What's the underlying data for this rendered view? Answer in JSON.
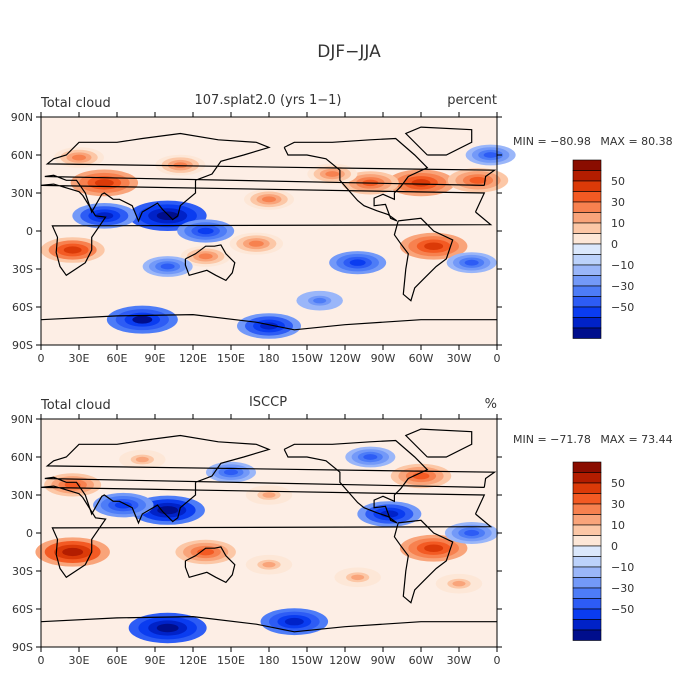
{
  "title": "DJF−JJA",
  "colorbar": {
    "colors": [
      "#000e8c",
      "#0022c8",
      "#0a3cf0",
      "#2d5cf5",
      "#4d7cf7",
      "#7399f8",
      "#9ab6f9",
      "#bcd2fb",
      "#dbe8fc",
      "#fde7d7",
      "#fcc7a6",
      "#f9a47a",
      "#f7814f",
      "#f35a23",
      "#db3a08",
      "#b31d00",
      "#8a0d00"
    ],
    "tick_labels": [
      "50",
      "30",
      "10",
      "0",
      "−10",
      "−30",
      "−50"
    ]
  },
  "map": {
    "longitude_labels": [
      "0",
      "30E",
      "60E",
      "90E",
      "120E",
      "150E",
      "180",
      "150W",
      "120W",
      "90W",
      "60W",
      "30W",
      "0"
    ],
    "latitude_labels": [
      "90N",
      "60N",
      "30N",
      "0",
      "30S",
      "60S",
      "90S"
    ],
    "land_color": "#000000"
  },
  "chart_data": [
    {
      "type": "heatmap",
      "variable": "Total cloud",
      "title": "107.splat2.0 (yrs 1−1)",
      "units": "percent",
      "min": -80.98,
      "max": 80.38,
      "min_label": "MIN = −80.98",
      "max_label": "MAX =  80.38",
      "xlim": [
        0,
        360
      ],
      "ylim": [
        -90,
        90
      ],
      "contour_levels": [
        -70,
        -60,
        -50,
        -40,
        -30,
        -20,
        -15,
        -10,
        -5,
        0,
        5,
        10,
        15,
        20,
        30,
        40,
        50,
        60,
        70
      ],
      "features": [
        {
          "lon": 50,
          "lat": 38,
          "value": 45
        },
        {
          "lon": 30,
          "lat": 58,
          "value": 20
        },
        {
          "lon": 110,
          "lat": 52,
          "value": 20
        },
        {
          "lon": 100,
          "lat": 12,
          "value": -60
        },
        {
          "lon": 50,
          "lat": 12,
          "value": -40
        },
        {
          "lon": 25,
          "lat": -15,
          "value": 40
        },
        {
          "lon": 310,
          "lat": -12,
          "value": 45
        },
        {
          "lon": 300,
          "lat": 38,
          "value": 45
        },
        {
          "lon": 345,
          "lat": 40,
          "value": 35
        },
        {
          "lon": 260,
          "lat": 38,
          "value": 30
        },
        {
          "lon": 230,
          "lat": 45,
          "value": 20
        },
        {
          "lon": 180,
          "lat": 25,
          "value": 20
        },
        {
          "lon": 170,
          "lat": -10,
          "value": 25
        },
        {
          "lon": 130,
          "lat": -20,
          "value": 20
        },
        {
          "lon": 130,
          "lat": 0,
          "value": -30
        },
        {
          "lon": 100,
          "lat": -28,
          "value": -20
        },
        {
          "lon": 250,
          "lat": -25,
          "value": -30
        },
        {
          "lon": 340,
          "lat": -25,
          "value": -20
        },
        {
          "lon": 180,
          "lat": -75,
          "value": -40
        },
        {
          "lon": 80,
          "lat": -70,
          "value": -50
        },
        {
          "lon": 220,
          "lat": -55,
          "value": -15
        },
        {
          "lon": 355,
          "lat": 60,
          "value": -20
        }
      ]
    },
    {
      "type": "heatmap",
      "variable": "Total cloud",
      "title": "ISCCP",
      "units": "%",
      "min": -71.78,
      "max": 73.44,
      "min_label": "MIN = −71.78",
      "max_label": "MAX =  73.44",
      "xlim": [
        0,
        360
      ],
      "ylim": [
        -90,
        90
      ],
      "contour_levels": [
        -70,
        -60,
        -50,
        -40,
        -30,
        -20,
        -15,
        -10,
        -5,
        0,
        5,
        10,
        15,
        20,
        30,
        40,
        50,
        60,
        70
      ],
      "features": [
        {
          "lon": 25,
          "lat": -15,
          "value": 55
        },
        {
          "lon": 310,
          "lat": -12,
          "value": 45
        },
        {
          "lon": 130,
          "lat": -15,
          "value": 35
        },
        {
          "lon": 100,
          "lat": 18,
          "value": -55
        },
        {
          "lon": 65,
          "lat": 22,
          "value": -35
        },
        {
          "lon": 275,
          "lat": 15,
          "value": -40
        },
        {
          "lon": 300,
          "lat": 45,
          "value": 35
        },
        {
          "lon": 25,
          "lat": 38,
          "value": 30
        },
        {
          "lon": 180,
          "lat": 30,
          "value": 15
        },
        {
          "lon": 150,
          "lat": 48,
          "value": -20
        },
        {
          "lon": 340,
          "lat": 0,
          "value": -25
        },
        {
          "lon": 100,
          "lat": -75,
          "value": -60
        },
        {
          "lon": 200,
          "lat": -70,
          "value": -45
        },
        {
          "lon": 180,
          "lat": -25,
          "value": 15
        },
        {
          "lon": 250,
          "lat": -35,
          "value": 15
        },
        {
          "lon": 330,
          "lat": -40,
          "value": 15
        },
        {
          "lon": 80,
          "lat": 58,
          "value": 15
        },
        {
          "lon": 260,
          "lat": 60,
          "value": -20
        }
      ]
    }
  ]
}
